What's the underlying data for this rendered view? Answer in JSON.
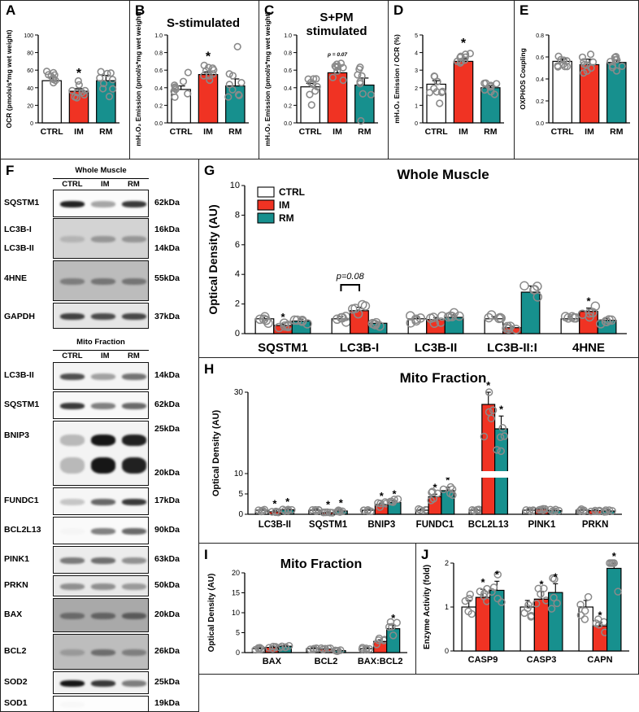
{
  "colors": {
    "ctrl": "#ffffff",
    "im": "#f03323",
    "rm": "#17908e",
    "dot": "#8a8a8a",
    "grid": "#000000"
  },
  "panel_labels": {
    "a": "A",
    "b": "B",
    "c": "C",
    "d": "D",
    "e": "E",
    "f": "F",
    "g": "G",
    "h": "H",
    "i": "I",
    "j": "J"
  },
  "chart_data": [
    {
      "id": "A",
      "type": "bar",
      "title": "",
      "ylabel": "OCR (pmols/s*mg wet weight)",
      "categories": [
        "CTRL",
        "IM",
        "RM"
      ],
      "values": [
        48,
        36,
        48
      ],
      "errors": [
        4,
        3,
        6
      ],
      "ylim": [
        0,
        100
      ],
      "yticks": [
        "0",
        "20",
        "40",
        "60",
        "80",
        "100"
      ],
      "annotations": [
        "*"
      ]
    },
    {
      "id": "B",
      "type": "bar",
      "title": "S-stimulated",
      "ylabel": "mH₂O₂ Emission (pmol/s*mg wet weight)",
      "categories": [
        "CTRL",
        "IM",
        "RM"
      ],
      "values": [
        0.38,
        0.55,
        0.42
      ],
      "errors": [
        0.04,
        0.03,
        0.08
      ],
      "ylim": [
        0,
        1.0
      ],
      "yticks": [
        "0.0",
        "0.2",
        "0.4",
        "0.6",
        "0.8",
        "1.0"
      ],
      "annotations": [
        "*"
      ]
    },
    {
      "id": "C",
      "type": "bar",
      "title": "S+PM stimulated",
      "ylabel": "mH₂O₂ Emission (pmol/s*mg wet weight)",
      "categories": [
        "CTRL",
        "IM",
        "RM"
      ],
      "values": [
        0.41,
        0.57,
        0.43
      ],
      "errors": [
        0.04,
        0.04,
        0.08
      ],
      "ylim": [
        0,
        1.0
      ],
      "yticks": [
        "0.0",
        "0.2",
        "0.4",
        "0.6",
        "0.8",
        "1.0"
      ],
      "annotations": [
        "p = 0.07"
      ]
    },
    {
      "id": "D",
      "type": "bar",
      "title": "",
      "ylabel": "mH₂O₂ Emission / OCR (%)",
      "categories": [
        "CTRL",
        "IM",
        "RM"
      ],
      "values": [
        2.2,
        3.5,
        2.0
      ],
      "errors": [
        0.2,
        0.15,
        0.1
      ],
      "ylim": [
        0,
        5
      ],
      "yticks": [
        "0",
        "1",
        "2",
        "3",
        "4",
        "5"
      ],
      "annotations": [
        "*"
      ]
    },
    {
      "id": "E",
      "type": "bar",
      "title": "",
      "ylabel": "OXPHOS Coupling",
      "categories": [
        "CTRL",
        "IM",
        "RM"
      ],
      "values": [
        0.56,
        0.53,
        0.55
      ],
      "errors": [
        0.02,
        0.05,
        0.02
      ],
      "ylim": [
        0,
        0.8
      ],
      "yticks": [
        "0.0",
        "0.2",
        "0.4",
        "0.6",
        "0.8"
      ],
      "annotations": []
    },
    {
      "id": "G",
      "type": "bar",
      "title": "Whole Muscle",
      "ylabel": "Optical Density (AU)",
      "legend": [
        "CTRL",
        "IM",
        "RM"
      ],
      "categories": [
        "SQSTM1",
        "LC3B-I",
        "LC3B-II",
        "LC3B-II:I",
        "4HNE"
      ],
      "series": [
        {
          "name": "CTRL",
          "values": [
            1.0,
            1.0,
            1.0,
            1.0,
            1.0
          ]
        },
        {
          "name": "IM",
          "values": [
            0.55,
            1.55,
            0.95,
            0.4,
            1.5
          ]
        },
        {
          "name": "RM",
          "values": [
            0.85,
            0.7,
            1.1,
            2.8,
            0.9
          ]
        }
      ],
      "ylim": [
        0,
        10
      ],
      "yticks": [
        "0",
        "2",
        "4",
        "6",
        "8",
        "10"
      ],
      "annotations": [
        "*",
        "p=0.08",
        "*"
      ]
    },
    {
      "id": "H",
      "type": "bar",
      "title": "Mito Fraction",
      "ylabel": "Optical Density (AU)",
      "categories": [
        "LC3B-II",
        "SQSTM1",
        "BNIP3",
        "FUNDC1",
        "BCL2L13",
        "PINK1",
        "PRKN"
      ],
      "series": [
        {
          "name": "CTRL",
          "values": [
            1.0,
            1.0,
            1.0,
            1.0,
            1.0,
            1.0,
            1.0
          ]
        },
        {
          "name": "IM",
          "values": [
            0.6,
            0.4,
            2.4,
            4.3,
            27,
            1.3,
            0.9
          ]
        },
        {
          "name": "RM",
          "values": [
            1.1,
            0.8,
            2.9,
            5.8,
            21,
            0.9,
            0.8
          ]
        }
      ],
      "ylim": [
        0,
        30
      ],
      "yticks": [
        "0",
        "5",
        "10",
        "30"
      ],
      "annotations": [
        "*",
        "*",
        "*",
        "*",
        "*",
        "*",
        "*",
        "*",
        "*",
        "*"
      ]
    },
    {
      "id": "I",
      "type": "bar",
      "title": "Mito Fraction",
      "ylabel": "Optical Density (AU)",
      "categories": [
        "BAX",
        "BCL2",
        "BAX:BCL2"
      ],
      "series": [
        {
          "name": "CTRL",
          "values": [
            1.0,
            1.0,
            1.0
          ]
        },
        {
          "name": "IM",
          "values": [
            1.3,
            0.9,
            2.8
          ]
        },
        {
          "name": "RM",
          "values": [
            1.6,
            0.5,
            6.0
          ]
        }
      ],
      "ylim": [
        0,
        20
      ],
      "yticks": [
        "0",
        "5",
        "10",
        "15",
        "20"
      ],
      "annotations": [
        "*"
      ]
    },
    {
      "id": "J",
      "type": "bar",
      "title": "",
      "ylabel": "Enzyme Activity (fold)",
      "categories": [
        "CASP9",
        "CASP3",
        "CAPN"
      ],
      "series": [
        {
          "name": "CTRL",
          "values": [
            1.0,
            1.0,
            1.0
          ]
        },
        {
          "name": "IM",
          "values": [
            1.22,
            1.18,
            0.57
          ]
        },
        {
          "name": "RM",
          "values": [
            1.38,
            1.33,
            1.88
          ]
        }
      ],
      "ylim": [
        0,
        2
      ],
      "yticks": [
        "0",
        "1",
        "2"
      ],
      "annotations": [
        "*",
        "*",
        "*",
        "*",
        "*",
        "*"
      ]
    }
  ],
  "blots": {
    "whole_header": "Whole Muscle",
    "mito_header": "Mito Fraction",
    "lanes": [
      "CTRL",
      "IM",
      "RM"
    ],
    "whole": [
      {
        "name": "SQSTM1",
        "kda": "62kDa"
      },
      {
        "name": "LC3B-I",
        "kda": "16kDa"
      },
      {
        "name": "LC3B-II",
        "kda": "14kDa"
      },
      {
        "name": "4HNE",
        "kda": "55kDa"
      },
      {
        "name": "GAPDH",
        "kda": "37kDa"
      }
    ],
    "mito": [
      {
        "name": "LC3B-II",
        "kda": "14kDa"
      },
      {
        "name": "SQSTM1",
        "kda": "62kDa"
      },
      {
        "name": "BNIP3",
        "kda": "25kDa",
        "kda2": "20kDa"
      },
      {
        "name": "FUNDC1",
        "kda": "17kDa"
      },
      {
        "name": "BCL2L13",
        "kda": "90kDa"
      },
      {
        "name": "PINK1",
        "kda": "63kDa"
      },
      {
        "name": "PRKN",
        "kda": "50kDa"
      },
      {
        "name": "BAX",
        "kda": "20kDa"
      },
      {
        "name": "BCL2",
        "kda": "26kDa"
      },
      {
        "name": "SOD2",
        "kda": "25kDa"
      },
      {
        "name": "SOD1",
        "kda": "19kDa"
      }
    ]
  }
}
